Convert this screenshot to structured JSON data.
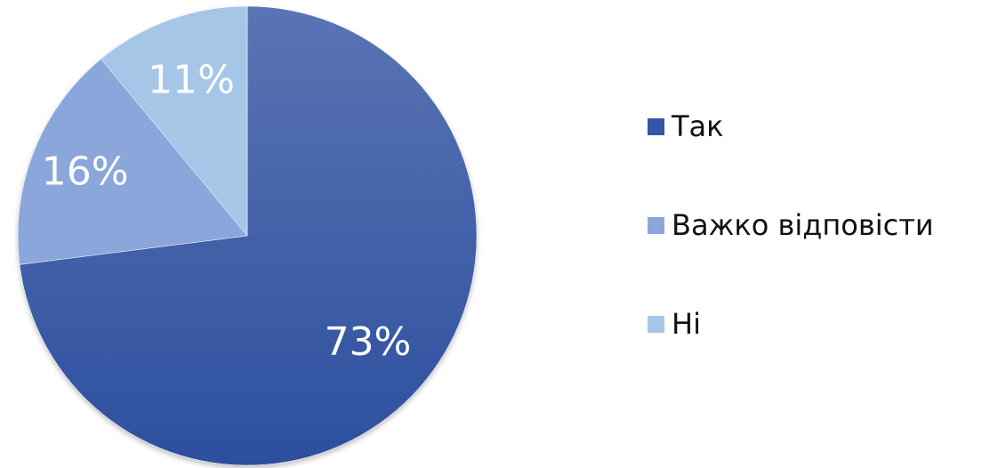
{
  "chart_data": {
    "type": "pie",
    "categories": [
      "Так",
      "Важко відповісти",
      "Ні"
    ],
    "values": [
      73,
      16,
      11
    ],
    "data_labels": [
      "73%",
      "16%",
      "11%"
    ],
    "colors": [
      "#3356a8",
      "#8aa6da",
      "#a6c6e8"
    ],
    "legend_position": "right",
    "start": "12 o'clock",
    "direction": "clockwise"
  },
  "legend": {
    "items": [
      {
        "label": "Так",
        "color": "#3356a8"
      },
      {
        "label": "Важко відповісти",
        "color": "#8aa6da"
      },
      {
        "label": "Ні",
        "color": "#a6c6e8"
      }
    ]
  }
}
